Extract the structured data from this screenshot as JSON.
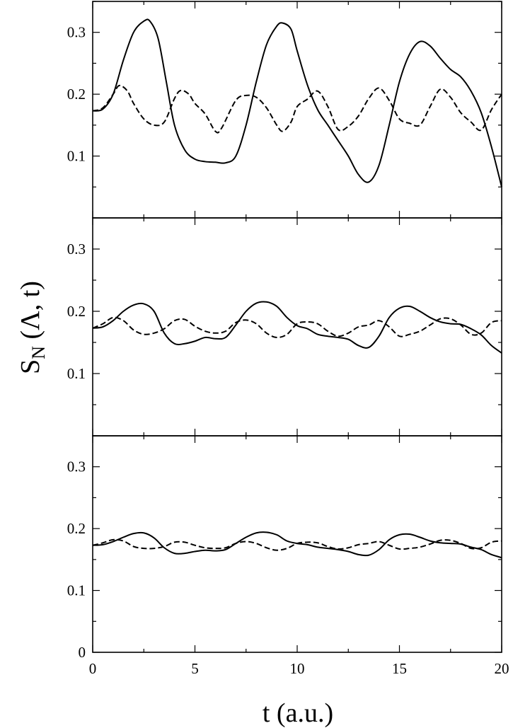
{
  "chart_data": [
    {
      "type": "line",
      "panel": "top",
      "xlim": [
        0,
        20
      ],
      "ylim": [
        0,
        0.35
      ],
      "yticks": [
        "0.1",
        "0.2",
        "0.3"
      ],
      "grid": false,
      "series": [
        {
          "style": "solid",
          "x": [
            0,
            0.5,
            1,
            1.5,
            2,
            2.5,
            2.8,
            3.2,
            3.6,
            4,
            4.5,
            5,
            5.5,
            6,
            6.5,
            7,
            7.5,
            8,
            8.5,
            9,
            9.3,
            9.7,
            10,
            10.5,
            11,
            11.5,
            12,
            12.5,
            13,
            13.5,
            14,
            14.5,
            15,
            15.5,
            16,
            16.5,
            17,
            17.5,
            18,
            18.5,
            19,
            19.5,
            20
          ],
          "values": [
            0.173,
            0.176,
            0.2,
            0.255,
            0.3,
            0.318,
            0.318,
            0.29,
            0.22,
            0.15,
            0.11,
            0.095,
            0.091,
            0.09,
            0.089,
            0.1,
            0.15,
            0.22,
            0.28,
            0.31,
            0.315,
            0.305,
            0.27,
            0.215,
            0.175,
            0.15,
            0.125,
            0.1,
            0.07,
            0.058,
            0.085,
            0.15,
            0.22,
            0.265,
            0.285,
            0.278,
            0.258,
            0.24,
            0.228,
            0.205,
            0.17,
            0.115,
            0.05
          ]
        },
        {
          "style": "dashed",
          "x": [
            0,
            0.5,
            1,
            1.3,
            1.7,
            2,
            2.5,
            3,
            3.5,
            4,
            4.3,
            4.7,
            5,
            5.5,
            6,
            6.3,
            7,
            7.5,
            8,
            8.5,
            9,
            9.3,
            9.7,
            10,
            10.5,
            11,
            11.5,
            12,
            12.5,
            13,
            13.5,
            14,
            14.5,
            15,
            15.5,
            16,
            16.5,
            17,
            17.5,
            18,
            18.5,
            19,
            19.5,
            20
          ],
          "values": [
            0.173,
            0.178,
            0.2,
            0.214,
            0.205,
            0.185,
            0.16,
            0.15,
            0.155,
            0.193,
            0.206,
            0.2,
            0.185,
            0.168,
            0.14,
            0.145,
            0.19,
            0.198,
            0.195,
            0.178,
            0.15,
            0.14,
            0.155,
            0.18,
            0.192,
            0.205,
            0.18,
            0.143,
            0.148,
            0.165,
            0.193,
            0.21,
            0.19,
            0.16,
            0.153,
            0.15,
            0.18,
            0.208,
            0.195,
            0.17,
            0.155,
            0.142,
            0.175,
            0.2
          ]
        }
      ]
    },
    {
      "type": "line",
      "panel": "middle",
      "xlim": [
        0,
        20
      ],
      "ylim": [
        0,
        0.35
      ],
      "yticks": [
        "0.1",
        "0.2",
        "0.3"
      ],
      "grid": false,
      "series": [
        {
          "style": "solid",
          "x": [
            0,
            0.5,
            1,
            1.5,
            2,
            2.5,
            3,
            3.5,
            4,
            4.5,
            5,
            5.5,
            6,
            6.5,
            7,
            7.5,
            8,
            8.5,
            9,
            9.5,
            10,
            10.5,
            11,
            11.5,
            12,
            12.5,
            13,
            13.5,
            14,
            14.5,
            15,
            15.5,
            16,
            16.5,
            17,
            17.5,
            18,
            18.5,
            19,
            19.5,
            20
          ],
          "values": [
            0.173,
            0.175,
            0.185,
            0.2,
            0.21,
            0.212,
            0.2,
            0.165,
            0.148,
            0.148,
            0.152,
            0.158,
            0.156,
            0.158,
            0.178,
            0.2,
            0.213,
            0.215,
            0.208,
            0.19,
            0.177,
            0.172,
            0.163,
            0.16,
            0.158,
            0.155,
            0.145,
            0.142,
            0.16,
            0.19,
            0.205,
            0.208,
            0.2,
            0.19,
            0.183,
            0.18,
            0.179,
            0.172,
            0.162,
            0.145,
            0.133
          ]
        },
        {
          "style": "dashed",
          "x": [
            0,
            0.5,
            1,
            1.5,
            2,
            2.5,
            3,
            3.5,
            4,
            4.5,
            5,
            5.5,
            6,
            6.5,
            7,
            7.5,
            8,
            8.5,
            9,
            9.5,
            10,
            10.5,
            11,
            11.5,
            12,
            12.5,
            13,
            13.5,
            14,
            14.5,
            15,
            15.5,
            16,
            16.5,
            17,
            17.5,
            18,
            18.5,
            19,
            19.5,
            20
          ],
          "values": [
            0.173,
            0.18,
            0.19,
            0.185,
            0.17,
            0.163,
            0.165,
            0.172,
            0.185,
            0.187,
            0.176,
            0.168,
            0.165,
            0.168,
            0.182,
            0.186,
            0.18,
            0.165,
            0.158,
            0.163,
            0.18,
            0.183,
            0.18,
            0.168,
            0.16,
            0.165,
            0.175,
            0.178,
            0.185,
            0.175,
            0.16,
            0.163,
            0.168,
            0.178,
            0.188,
            0.188,
            0.178,
            0.163,
            0.165,
            0.182,
            0.185
          ]
        }
      ]
    },
    {
      "type": "line",
      "panel": "bottom",
      "xlabel": "t (a.u.)",
      "xlim": [
        0,
        20
      ],
      "ylim": [
        0,
        0.35
      ],
      "xticks": [
        "0",
        "5",
        "10",
        "15",
        "20"
      ],
      "yticks": [
        "0",
        "0.1",
        "0.2",
        "0.3"
      ],
      "grid": false,
      "series": [
        {
          "style": "solid",
          "x": [
            0,
            0.5,
            1,
            1.5,
            2,
            2.5,
            3,
            3.5,
            4,
            4.5,
            5,
            5.5,
            6,
            6.5,
            7,
            7.5,
            8,
            8.5,
            9,
            9.5,
            10,
            10.5,
            11,
            11.5,
            12,
            12.5,
            13,
            13.5,
            14,
            14.5,
            15,
            15.5,
            16,
            16.5,
            17,
            17.5,
            18,
            18.5,
            19,
            19.5,
            20
          ],
          "values": [
            0.173,
            0.174,
            0.179,
            0.186,
            0.192,
            0.193,
            0.185,
            0.169,
            0.16,
            0.16,
            0.163,
            0.165,
            0.164,
            0.166,
            0.176,
            0.186,
            0.193,
            0.194,
            0.19,
            0.18,
            0.176,
            0.174,
            0.17,
            0.168,
            0.166,
            0.163,
            0.158,
            0.157,
            0.166,
            0.182,
            0.19,
            0.191,
            0.186,
            0.18,
            0.177,
            0.176,
            0.175,
            0.17,
            0.166,
            0.158,
            0.153
          ]
        },
        {
          "style": "dashed",
          "x": [
            0,
            0.5,
            1,
            1.5,
            2,
            2.5,
            3,
            3.5,
            4,
            4.5,
            5,
            5.5,
            6,
            6.5,
            7,
            7.5,
            8,
            8.5,
            9,
            9.5,
            10,
            10.5,
            11,
            11.5,
            12,
            12.5,
            13,
            13.5,
            14,
            14.5,
            15,
            15.5,
            16,
            16.5,
            17,
            17.5,
            18,
            18.5,
            19,
            19.5,
            20
          ],
          "values": [
            0.173,
            0.177,
            0.182,
            0.18,
            0.171,
            0.168,
            0.168,
            0.171,
            0.178,
            0.178,
            0.173,
            0.169,
            0.168,
            0.169,
            0.176,
            0.179,
            0.176,
            0.169,
            0.165,
            0.168,
            0.176,
            0.178,
            0.177,
            0.171,
            0.167,
            0.169,
            0.174,
            0.176,
            0.179,
            0.173,
            0.167,
            0.168,
            0.17,
            0.175,
            0.181,
            0.181,
            0.176,
            0.168,
            0.169,
            0.178,
            0.18
          ]
        }
      ]
    }
  ],
  "ylabel": {
    "base": "S",
    "subscript": "N",
    "rest": " (Λ, t)"
  }
}
